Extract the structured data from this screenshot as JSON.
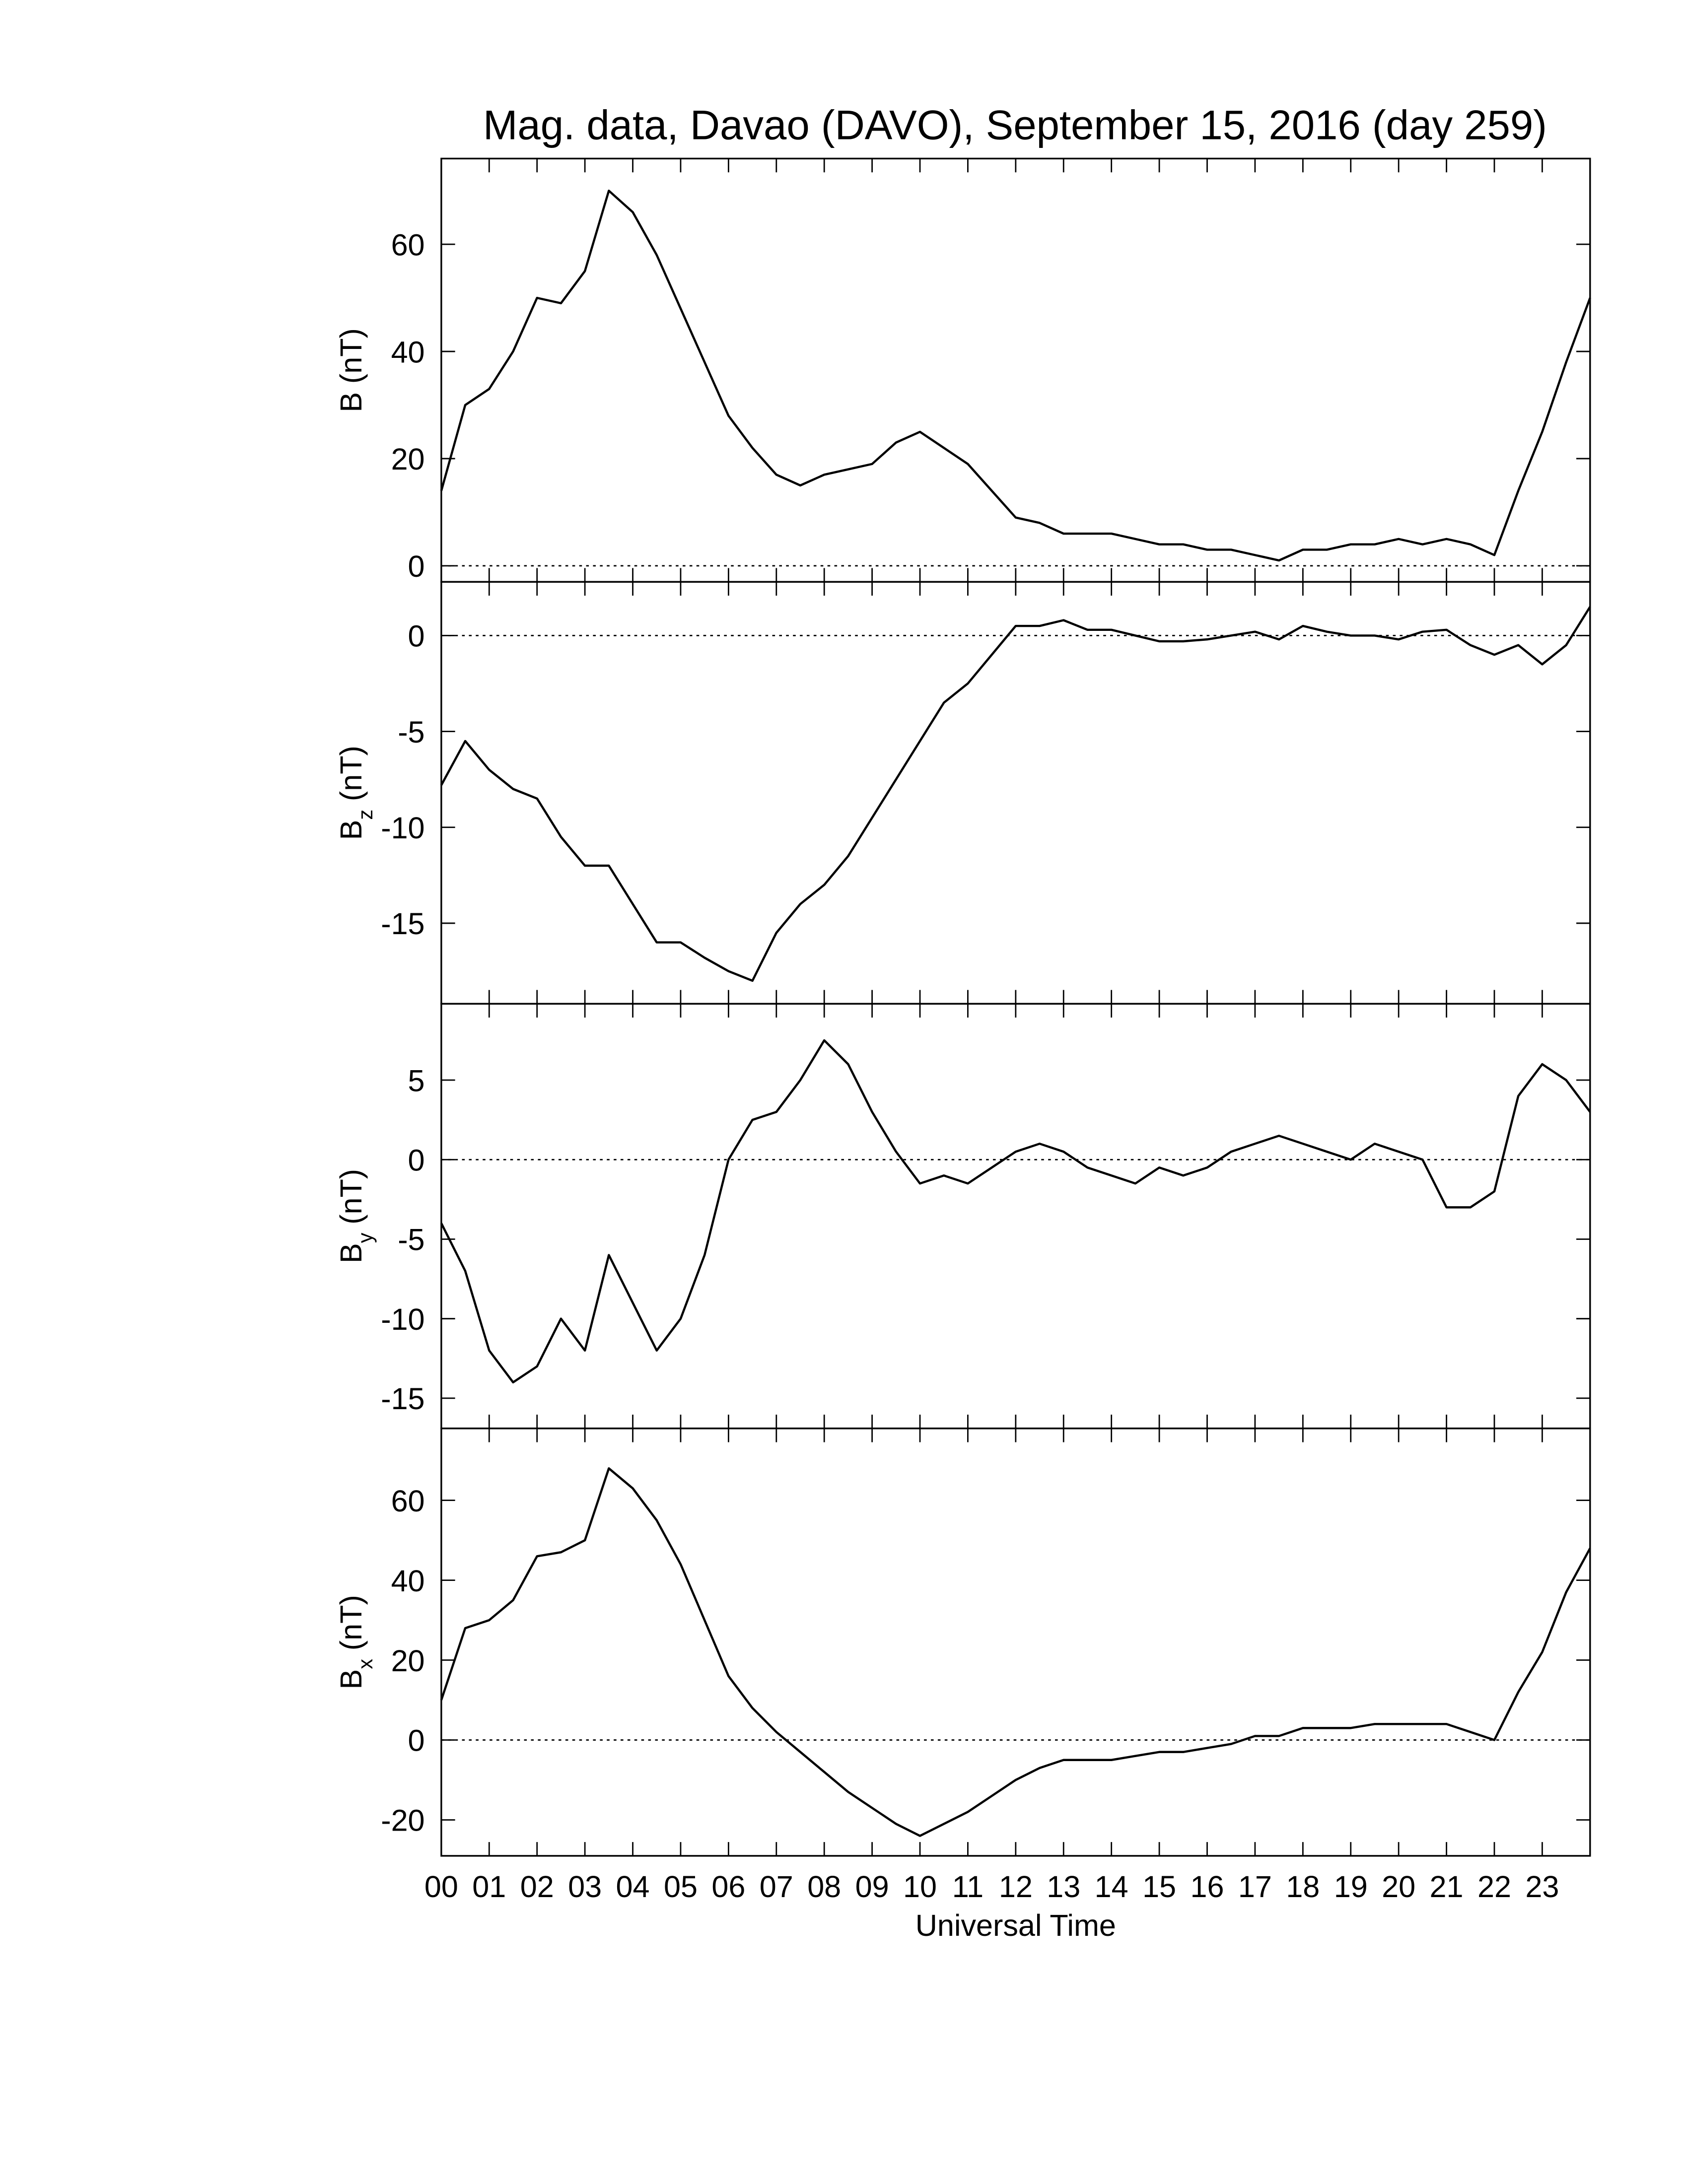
{
  "chart_data": [
    {
      "type": "line",
      "title": "Mag. data, Davao (DAVO), September 15, 2016 (day 259)",
      "ylabel": {
        "base": "B",
        "unit": "(nT)"
      },
      "color": "#000000",
      "zero_line": true,
      "x": [
        0,
        0.5,
        1,
        1.5,
        2,
        2.5,
        3,
        3.5,
        4,
        4.5,
        5,
        5.5,
        6,
        6.5,
        7,
        7.5,
        8,
        8.5,
        9,
        9.5,
        10,
        10.5,
        11,
        11.5,
        12,
        12.5,
        13,
        13.5,
        14,
        14.5,
        15,
        15.5,
        16,
        16.5,
        17,
        17.5,
        18,
        18.5,
        19,
        19.5,
        20,
        20.5,
        21,
        21.5,
        22,
        22.5,
        23,
        23.5,
        24
      ],
      "values": [
        14,
        30,
        33,
        40,
        50,
        49,
        55,
        70,
        66,
        58,
        48,
        38,
        28,
        22,
        17,
        15,
        17,
        18,
        19,
        23,
        25,
        22,
        19,
        14,
        9,
        8,
        6,
        6,
        6,
        5,
        4,
        4,
        3,
        3,
        2,
        1,
        3,
        3,
        4,
        4,
        5,
        4,
        5,
        4,
        2,
        14,
        25,
        38,
        50
      ],
      "ylim": [
        -3,
        76
      ],
      "yticks": [
        0,
        20,
        40,
        60
      ]
    },
    {
      "type": "line",
      "ylabel": {
        "base": "B",
        "sub": "z",
        "unit": "(nT)"
      },
      "color": "#000000",
      "zero_line": true,
      "x": [
        0,
        0.5,
        1,
        1.5,
        2,
        2.5,
        3,
        3.5,
        4,
        4.5,
        5,
        5.5,
        6,
        6.5,
        7,
        7.5,
        8,
        8.5,
        9,
        9.5,
        10,
        10.5,
        11,
        11.5,
        12,
        12.5,
        13,
        13.5,
        14,
        14.5,
        15,
        15.5,
        16,
        16.5,
        17,
        17.5,
        18,
        18.5,
        19,
        19.5,
        20,
        20.5,
        21,
        21.5,
        22,
        22.5,
        23,
        23.5,
        24
      ],
      "values": [
        -7.8,
        -5.5,
        -7,
        -8,
        -8.5,
        -10.5,
        -12,
        -12,
        -14,
        -16,
        -16,
        -16.8,
        -17.5,
        -18,
        -15.5,
        -14,
        -13,
        -11.5,
        -9.5,
        -7.5,
        -5.5,
        -3.5,
        -2.5,
        -1,
        0.5,
        0.5,
        0.8,
        0.3,
        0.3,
        0,
        -0.3,
        -0.3,
        -0.2,
        0,
        0.2,
        -0.2,
        0.5,
        0.2,
        0,
        0,
        -0.2,
        0.2,
        0.3,
        -0.5,
        -1,
        -0.5,
        -1.5,
        -0.5,
        1.5
      ],
      "ylim": [
        -19.2,
        2.8
      ],
      "yticks": [
        -15,
        -10,
        -5,
        0
      ]
    },
    {
      "type": "line",
      "ylabel": {
        "base": "B",
        "sub": "y",
        "unit": "(nT)"
      },
      "color": "#000000",
      "zero_line": true,
      "x": [
        0,
        0.5,
        1,
        1.5,
        2,
        2.5,
        3,
        3.5,
        4,
        4.5,
        5,
        5.5,
        6,
        6.5,
        7,
        7.5,
        8,
        8.5,
        9,
        9.5,
        10,
        10.5,
        11,
        11.5,
        12,
        12.5,
        13,
        13.5,
        14,
        14.5,
        15,
        15.5,
        16,
        16.5,
        17,
        17.5,
        18,
        18.5,
        19,
        19.5,
        20,
        20.5,
        21,
        21.5,
        22,
        22.5,
        23,
        23.5,
        24
      ],
      "values": [
        -4,
        -7,
        -12,
        -14,
        -13,
        -10,
        -12,
        -6,
        -9,
        -12,
        -10,
        -6,
        0,
        2.5,
        3,
        5,
        7.5,
        6,
        3,
        0.5,
        -1.5,
        -1,
        -1.5,
        -0.5,
        0.5,
        1,
        0.5,
        -0.5,
        -1,
        -1.5,
        -0.5,
        -1,
        -0.5,
        0.5,
        1,
        1.5,
        1,
        0.5,
        0,
        1,
        0.5,
        0,
        -3,
        -3,
        -2,
        4,
        6,
        5,
        3
      ],
      "ylim": [
        -16.9,
        9.8
      ],
      "yticks": [
        -15,
        -10,
        -5,
        0,
        5
      ]
    },
    {
      "type": "line",
      "ylabel": {
        "base": "B",
        "sub": "x",
        "unit": "(nT)"
      },
      "color": "#000000",
      "zero_line": true,
      "xlabel": "Universal Time",
      "x": [
        0,
        0.5,
        1,
        1.5,
        2,
        2.5,
        3,
        3.5,
        4,
        4.5,
        5,
        5.5,
        6,
        6.5,
        7,
        7.5,
        8,
        8.5,
        9,
        9.5,
        10,
        10.5,
        11,
        11.5,
        12,
        12.5,
        13,
        13.5,
        14,
        14.5,
        15,
        15.5,
        16,
        16.5,
        17,
        17.5,
        18,
        18.5,
        19,
        19.5,
        20,
        20.5,
        21,
        21.5,
        22,
        22.5,
        23,
        23.5,
        24
      ],
      "values": [
        10,
        28,
        30,
        35,
        46,
        47,
        50,
        68,
        63,
        55,
        44,
        30,
        16,
        8,
        2,
        -3,
        -8,
        -13,
        -17,
        -21,
        -24,
        -21,
        -18,
        -14,
        -10,
        -7,
        -5,
        -5,
        -5,
        -4,
        -3,
        -3,
        -2,
        -1,
        1,
        1,
        3,
        3,
        3,
        4,
        4,
        4,
        4,
        2,
        0,
        12,
        22,
        37,
        48
      ],
      "ylim": [
        -29,
        78
      ],
      "yticks": [
        -20,
        0,
        20,
        40,
        60
      ],
      "xlim": [
        0,
        24
      ],
      "xticks": [
        {
          "value": 0,
          "label": "00"
        },
        {
          "value": 1,
          "label": "01"
        },
        {
          "value": 2,
          "label": "02"
        },
        {
          "value": 3,
          "label": "03"
        },
        {
          "value": 4,
          "label": "04"
        },
        {
          "value": 5,
          "label": "05"
        },
        {
          "value": 6,
          "label": "06"
        },
        {
          "value": 7,
          "label": "07"
        },
        {
          "value": 8,
          "label": "08"
        },
        {
          "value": 9,
          "label": "09"
        },
        {
          "value": 10,
          "label": "10"
        },
        {
          "value": 11,
          "label": "11"
        },
        {
          "value": 12,
          "label": "12"
        },
        {
          "value": 13,
          "label": "13"
        },
        {
          "value": 14,
          "label": "14"
        },
        {
          "value": 15,
          "label": "15"
        },
        {
          "value": 16,
          "label": "16"
        },
        {
          "value": 17,
          "label": "17"
        },
        {
          "value": 18,
          "label": "18"
        },
        {
          "value": 19,
          "label": "19"
        },
        {
          "value": 20,
          "label": "20"
        },
        {
          "value": 21,
          "label": "21"
        },
        {
          "value": 22,
          "label": "22"
        },
        {
          "value": 23,
          "label": "23"
        }
      ]
    }
  ]
}
